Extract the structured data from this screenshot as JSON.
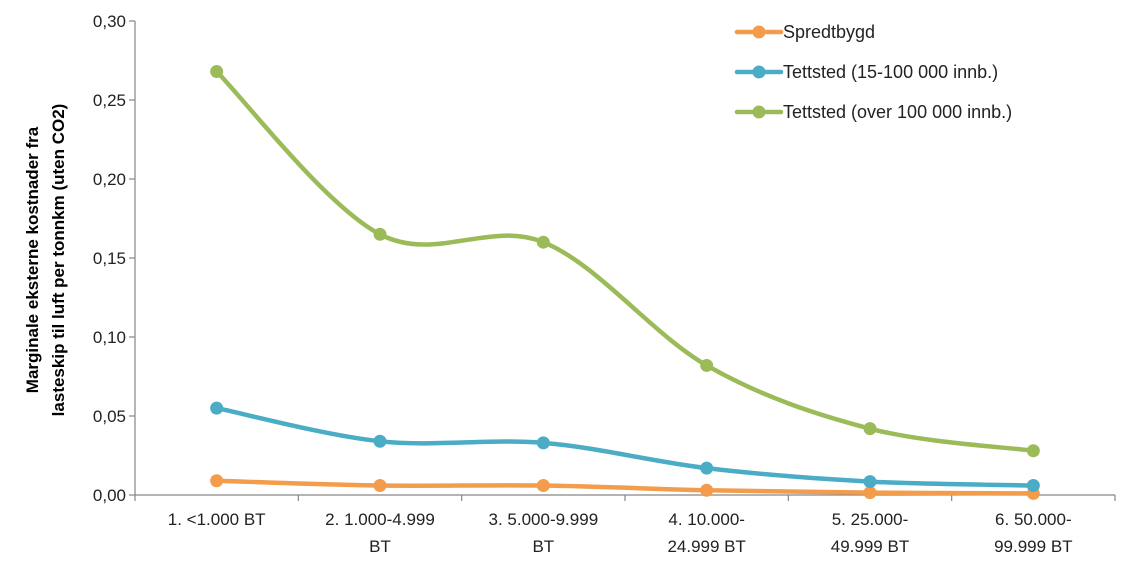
{
  "chart_data": {
    "type": "line",
    "ylabel_lines": [
      "Marginale eksterne kostnader fra",
      "lasteskip til luft per tonnkm (uten CO2)"
    ],
    "xlabel": "",
    "title": "",
    "categories": [
      [
        "1. <1.000 BT"
      ],
      [
        "2. 1.000-4.999",
        "BT"
      ],
      [
        "3. 5.000-9.999",
        "BT"
      ],
      [
        "4. 10.000-",
        "24.999 BT"
      ],
      [
        "5. 25.000-",
        "49.999 BT"
      ],
      [
        "6. 50.000-",
        "99.999 BT"
      ]
    ],
    "ylim": [
      0,
      0.3
    ],
    "yticks": [
      "0,00",
      "0,05",
      "0,10",
      "0,15",
      "0,20",
      "0,25",
      "0,30"
    ],
    "legend_position": "top-right",
    "series": [
      {
        "name": "Spredtbygd",
        "color": "#F39C4B",
        "values": [
          0.009,
          0.006,
          0.006,
          0.003,
          0.0015,
          0.001
        ]
      },
      {
        "name": "Tettsted (15-100 000 innb.)",
        "color": "#4BACC6",
        "values": [
          0.055,
          0.034,
          0.033,
          0.017,
          0.0085,
          0.006
        ]
      },
      {
        "name": "Tettsted (over 100 000 innb.)",
        "color": "#9BBB59",
        "values": [
          0.268,
          0.165,
          0.16,
          0.082,
          0.042,
          0.028
        ]
      }
    ]
  }
}
